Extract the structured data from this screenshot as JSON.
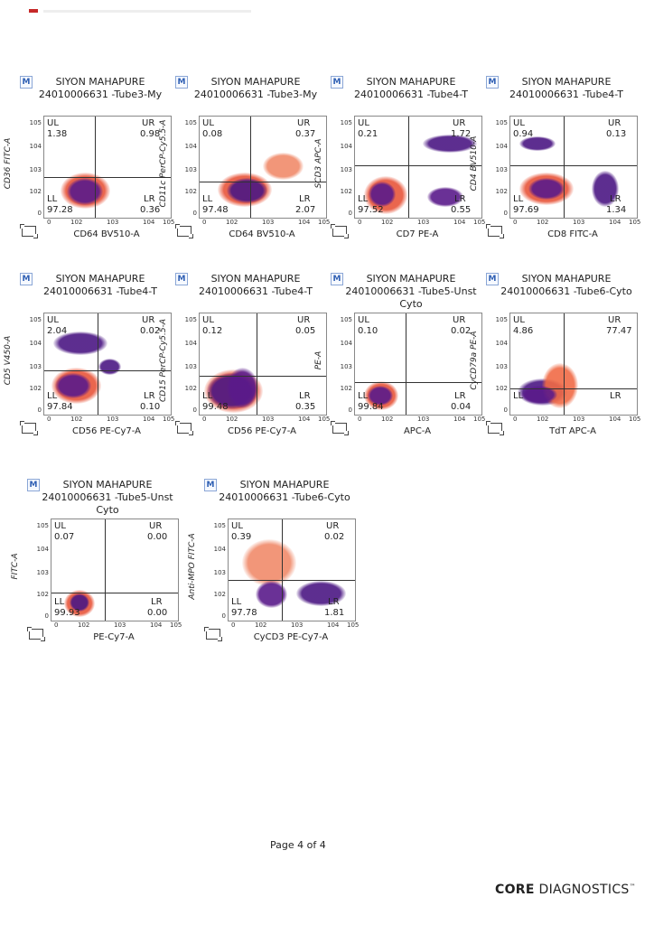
{
  "page": {
    "footer_text": "Page 4 of 4",
    "logo_bold": "CORE",
    "logo_rest": " DIAGNOSTICS",
    "logo_tm": "™",
    "m_badge": "M"
  },
  "axis_ticks_log": [
    "0",
    "102",
    "103",
    "104",
    "105"
  ],
  "chart_data": [
    {
      "type": "scatter",
      "patient": "SIYON MAHAPURE",
      "title": "24010006631 -Tube3-My",
      "xlabel": "CD64 BV510-A",
      "ylabel": "CD36 FITC-A",
      "quadrants": {
        "UL": "1.38",
        "UR": "0.98",
        "LL": "97.28",
        "LR": "0.36"
      }
    },
    {
      "type": "scatter",
      "patient": "SIYON MAHAPURE",
      "title": "24010006631 -Tube3-My",
      "xlabel": "CD64 BV510-A",
      "ylabel": "CD11c PerCP-Cy5.5-A",
      "quadrants": {
        "UL": "0.08",
        "UR": "0.37",
        "LL": "97.48",
        "LR": "2.07"
      }
    },
    {
      "type": "scatter",
      "patient": "SIYON MAHAPURE",
      "title": "24010006631 -Tube4-T",
      "xlabel": "CD7 PE-A",
      "ylabel": "SCD3 APC-A",
      "quadrants": {
        "UL": "0.21",
        "UR": "1.72",
        "LL": "97.52",
        "LR": "0.55"
      }
    },
    {
      "type": "scatter",
      "patient": "SIYON MAHAPURE",
      "title": "24010006631 -Tube4-T",
      "xlabel": "CD8 FITC-A",
      "ylabel": "CD4 BV510-A",
      "quadrants": {
        "UL": "0.94",
        "UR": "0.13",
        "LL": "97.69",
        "LR": "1.34"
      }
    },
    {
      "type": "scatter",
      "patient": "SIYON MAHAPURE",
      "title": "24010006631 -Tube4-T",
      "xlabel": "CD56 PE-Cy7-A",
      "ylabel": "CD5 V450-A",
      "quadrants": {
        "UL": "2.04",
        "UR": "0.02",
        "LL": "97.84",
        "LR": "0.10"
      }
    },
    {
      "type": "scatter",
      "patient": "SIYON MAHAPURE",
      "title": "24010006631 -Tube4-T",
      "xlabel": "CD56 PE-Cy7-A",
      "ylabel": "CD15 PerCP-Cy5.5-A",
      "quadrants": {
        "UL": "0.12",
        "UR": "0.05",
        "LL": "99.48",
        "LR": "0.35"
      }
    },
    {
      "type": "scatter",
      "patient": "SIYON MAHAPURE",
      "title": "24010006631 -Tube5-Unst Cyto",
      "xlabel": "APC-A",
      "ylabel": "PE-A",
      "quadrants": {
        "UL": "0.10",
        "UR": "0.02",
        "LL": "99.84",
        "LR": "0.04"
      }
    },
    {
      "type": "scatter",
      "patient": "SIYON MAHAPURE",
      "title": "24010006631 -Tube6-Cyto",
      "xlabel": "TdT APC-A",
      "ylabel": "CyCD79a PE-A",
      "quadrants": {
        "UL": "4.86",
        "UR": "77.47",
        "LL": "",
        "LR": ""
      }
    },
    {
      "type": "scatter",
      "patient": "SIYON MAHAPURE",
      "title": "24010006631 -Tube5-Unst Cyto",
      "xlabel": "PE-Cy7-A",
      "ylabel": "FITC-A",
      "quadrants": {
        "UL": "0.07",
        "UR": "0.00",
        "LL": "99.93",
        "LR": "0.00"
      }
    },
    {
      "type": "scatter",
      "patient": "SIYON MAHAPURE",
      "title": "24010006631 -Tube6-Cyto",
      "xlabel": "CyCD3 PE-Cy7-A",
      "ylabel": "Anti-MPO FITC-A",
      "quadrants": {
        "UL": "0.39",
        "UR": "0.02",
        "LL": "97.78",
        "LR": "1.81"
      }
    }
  ]
}
